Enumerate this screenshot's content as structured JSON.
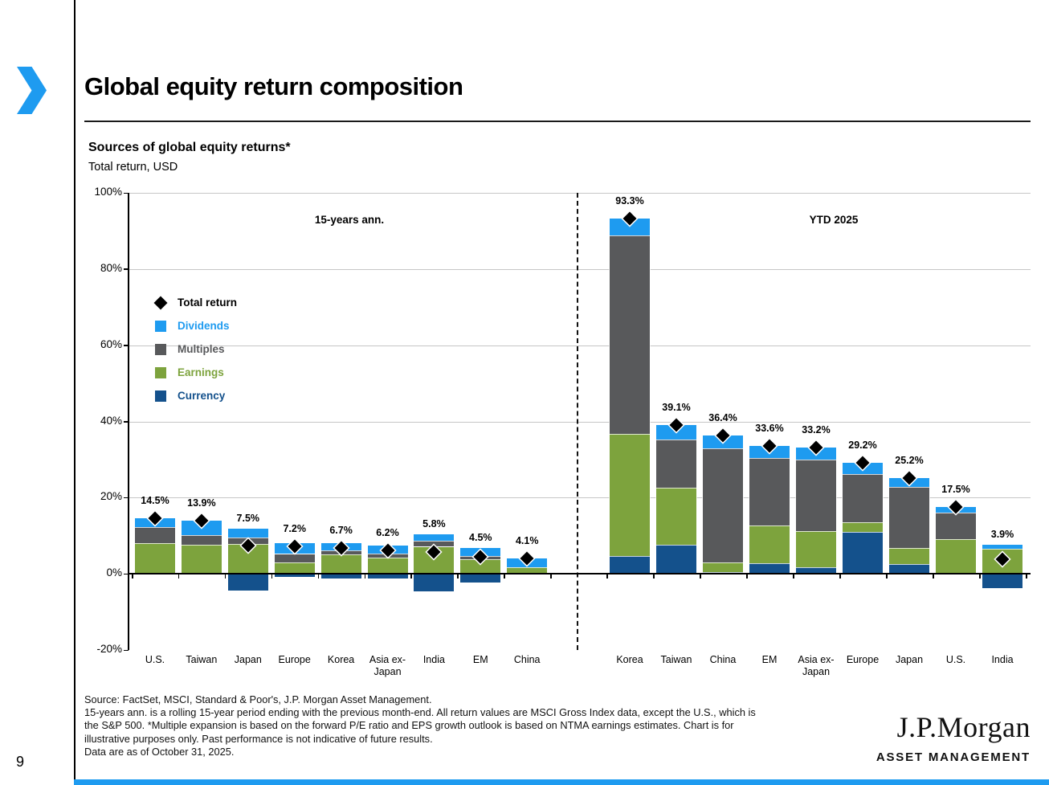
{
  "slide": {
    "title": "Global equity return composition",
    "page_number": "9",
    "logo": {
      "primary": "J.P.Morgan",
      "secondary": "ASSET MANAGEMENT"
    }
  },
  "footnote": {
    "lines": [
      "Source: FactSet, MSCI, Standard & Poor's, J.P. Morgan Asset Management.",
      "15-years ann. is a rolling 15-year period ending with the previous month-end. All return values are MSCI Gross Index data, except the U.S., which is",
      "the S&P 500. *Multiple expansion is based on the forward P/E ratio and EPS growth outlook is based on NTMA earnings estimates. Chart is for",
      "illustrative purposes only. Past performance is not indicative of future results.",
      "Data are as of October 31, 2025."
    ]
  },
  "colors": {
    "accent_blue": "#1e9bf0",
    "dividends": "#1e9bf0",
    "multiples": "#58595b",
    "earnings": "#7da33d",
    "currency": "#14518c",
    "total_return": "#000000"
  },
  "chart_data": {
    "type": "bar",
    "stacked": true,
    "title": "Sources of global equity returns*",
    "subtitle": "Total return, USD",
    "ylim": [
      -20,
      100
    ],
    "grid": true,
    "yticks": [
      {
        "value": 100,
        "label": "100%"
      },
      {
        "value": 80,
        "label": "80%"
      },
      {
        "value": 60,
        "label": "60%"
      },
      {
        "value": 40,
        "label": "40%"
      },
      {
        "value": 20,
        "label": "20%"
      },
      {
        "value": 0,
        "label": "0%"
      },
      {
        "value": -20,
        "label": "-20%"
      }
    ],
    "legend_position": "upper-left-inside",
    "legend": [
      {
        "name": "Total return",
        "marker": "diamond",
        "color": "#000000"
      },
      {
        "name": "Dividends",
        "marker": "square",
        "color": "#1e9bf0"
      },
      {
        "name": "Multiples",
        "marker": "square",
        "color": "#58595b"
      },
      {
        "name": "Earnings",
        "marker": "square",
        "color": "#7da33d"
      },
      {
        "name": "Currency",
        "marker": "square",
        "color": "#14518c"
      }
    ],
    "groups": [
      {
        "label": "15-years ann.",
        "categories": [
          "U.S.",
          "Taiwan",
          "Japan",
          "Europe",
          "Korea",
          "Asia ex-Japan",
          "India",
          "EM",
          "China"
        ],
        "totals": [
          14.5,
          13.9,
          7.5,
          7.2,
          6.7,
          6.2,
          5.8,
          4.5,
          4.1
        ],
        "total_labels": [
          "14.5%",
          "13.9%",
          "7.5%",
          "7.2%",
          "6.7%",
          "6.2%",
          "5.8%",
          "4.5%",
          "4.1%"
        ],
        "series": [
          {
            "name": "Currency",
            "color": "#14518c",
            "values": [
              0.0,
              0.0,
              -4.4,
              -0.8,
              -1.3,
              -1.3,
              -4.6,
              -2.3,
              0.0
            ]
          },
          {
            "name": "Earnings",
            "color": "#7da33d",
            "values": [
              8.1,
              7.6,
              7.9,
              3.0,
              5.1,
              4.2,
              7.1,
              3.8,
              1.8
            ]
          },
          {
            "name": "Multiples",
            "color": "#58595b",
            "values": [
              4.2,
              2.5,
              1.6,
              2.2,
              1.1,
              1.1,
              1.6,
              0.9,
              0.0
            ]
          },
          {
            "name": "Dividends",
            "color": "#1e9bf0",
            "values": [
              2.2,
              3.8,
              2.4,
              2.8,
              1.8,
              2.2,
              1.7,
              2.1,
              2.3
            ]
          }
        ]
      },
      {
        "label": "YTD 2025",
        "categories": [
          "Korea",
          "Taiwan",
          "China",
          "EM",
          "Asia ex-Japan",
          "Europe",
          "Japan",
          "U.S.",
          "India"
        ],
        "totals": [
          93.3,
          39.1,
          36.4,
          33.6,
          33.2,
          29.2,
          25.2,
          17.5,
          3.9
        ],
        "total_labels": [
          "93.3%",
          "39.1%",
          "36.4%",
          "33.6%",
          "33.2%",
          "29.2%",
          "25.2%",
          "17.5%",
          "3.9%"
        ],
        "series": [
          {
            "name": "Currency",
            "color": "#14518c",
            "values": [
              4.6,
              7.6,
              0.5,
              2.8,
              1.7,
              11.0,
              2.6,
              0.0,
              -3.8
            ]
          },
          {
            "name": "Earnings",
            "color": "#7da33d",
            "values": [
              32.1,
              15.0,
              2.4,
              9.9,
              9.5,
              2.5,
              4.2,
              9.2,
              6.6
            ]
          },
          {
            "name": "Multiples",
            "color": "#58595b",
            "values": [
              52.1,
              12.6,
              30.1,
              17.6,
              18.7,
              12.6,
              16.1,
              6.8,
              0.0
            ]
          },
          {
            "name": "Dividends",
            "color": "#1e9bf0",
            "values": [
              4.5,
              3.9,
              3.4,
              3.3,
              3.3,
              3.1,
              2.3,
              1.5,
              1.1
            ]
          }
        ]
      }
    ]
  }
}
